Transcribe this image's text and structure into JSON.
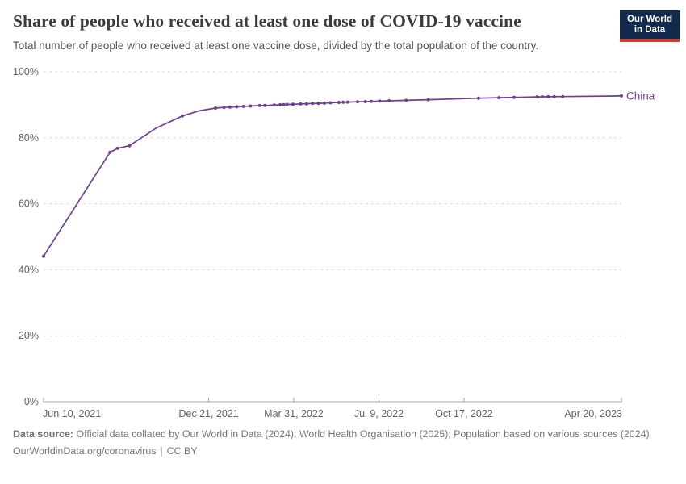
{
  "header": {
    "title": "Share of people who received at least one dose of COVID-19 vaccine",
    "subtitle": "Total number of people who received at least one vaccine dose, divided by the total population of the country.",
    "logo": {
      "line1": "Our World",
      "line2": "in Data",
      "bg_color": "#122a4e",
      "bar_color": "#cf3b2e"
    }
  },
  "chart_data": {
    "type": "line",
    "title": "Share of people who received at least one dose of COVID-19 vaccine",
    "xlabel": "",
    "ylabel": "",
    "ylim": [
      0,
      100
    ],
    "x_range": [
      "2021-06-10",
      "2023-04-20"
    ],
    "grid": "horizontal-dashed",
    "legend_position": "end-of-line",
    "y_ticks": [
      {
        "value": 0,
        "label": "0%"
      },
      {
        "value": 20,
        "label": "20%"
      },
      {
        "value": 40,
        "label": "40%"
      },
      {
        "value": 60,
        "label": "60%"
      },
      {
        "value": 80,
        "label": "80%"
      },
      {
        "value": 100,
        "label": "100%"
      }
    ],
    "x_ticks": [
      {
        "date": "2021-06-10",
        "label": "Jun 10, 2021",
        "anchor": "start"
      },
      {
        "date": "2021-12-21",
        "label": "Dec 21, 2021",
        "anchor": "middle"
      },
      {
        "date": "2022-03-31",
        "label": "Mar 31, 2022",
        "anchor": "middle"
      },
      {
        "date": "2022-07-09",
        "label": "Jul 9, 2022",
        "anchor": "middle"
      },
      {
        "date": "2022-10-17",
        "label": "Oct 17, 2022",
        "anchor": "middle"
      },
      {
        "date": "2023-04-20",
        "label": "Apr 20, 2023",
        "anchor": "end"
      }
    ],
    "series": [
      {
        "name": "China",
        "color": "#6d3e91",
        "points": [
          [
            "2021-06-10",
            44.1
          ],
          [
            "2021-08-27",
            75.6
          ],
          [
            "2021-09-05",
            76.8
          ],
          [
            "2021-09-19",
            77.6
          ],
          [
            "2021-10-20",
            82.9,
            false
          ],
          [
            "2021-11-20",
            86.6
          ],
          [
            "2021-12-10",
            88.2,
            false
          ],
          [
            "2021-12-29",
            89.0
          ],
          [
            "2022-01-08",
            89.2
          ],
          [
            "2022-01-15",
            89.3
          ],
          [
            "2022-01-23",
            89.4
          ],
          [
            "2022-01-31",
            89.5
          ],
          [
            "2022-02-08",
            89.6
          ],
          [
            "2022-02-19",
            89.75
          ],
          [
            "2022-02-25",
            89.8
          ],
          [
            "2022-03-08",
            89.9
          ],
          [
            "2022-03-15",
            90.0
          ],
          [
            "2022-03-19",
            90.05
          ],
          [
            "2022-03-23",
            90.1
          ],
          [
            "2022-03-30",
            90.15
          ],
          [
            "2022-04-08",
            90.25
          ],
          [
            "2022-04-15",
            90.3
          ],
          [
            "2022-04-22",
            90.4
          ],
          [
            "2022-04-29",
            90.45
          ],
          [
            "2022-05-06",
            90.5
          ],
          [
            "2022-05-13",
            90.6
          ],
          [
            "2022-05-23",
            90.7
          ],
          [
            "2022-05-28",
            90.75
          ],
          [
            "2022-06-02",
            90.8
          ],
          [
            "2022-06-14",
            90.9
          ],
          [
            "2022-06-23",
            90.95
          ],
          [
            "2022-06-30",
            91.0
          ],
          [
            "2022-07-10",
            91.1
          ],
          [
            "2022-07-21",
            91.2
          ],
          [
            "2022-08-10",
            91.35
          ],
          [
            "2022-09-05",
            91.55
          ],
          [
            "2022-11-03",
            92.0
          ],
          [
            "2022-11-27",
            92.15
          ],
          [
            "2022-12-15",
            92.25
          ],
          [
            "2023-01-11",
            92.4
          ],
          [
            "2023-01-17",
            92.42
          ],
          [
            "2023-01-24",
            92.45
          ],
          [
            "2023-01-31",
            92.47
          ],
          [
            "2023-02-10",
            92.5
          ],
          [
            "2023-04-20",
            92.7
          ]
        ]
      }
    ]
  },
  "footer": {
    "source_label": "Data source:",
    "source_text": "Official data collated by Our World in Data (2024); World Health Organisation (2025); Population based on various sources (2024)",
    "link": "OurWorldinData.org/coronavirus",
    "separator": "|",
    "license": "CC BY"
  }
}
